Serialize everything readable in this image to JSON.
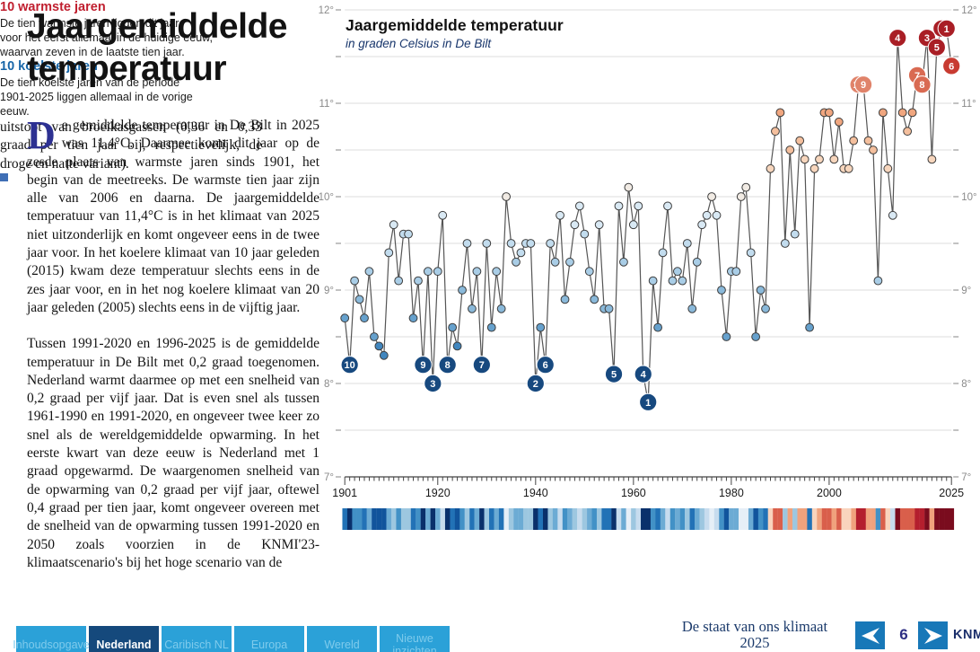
{
  "article": {
    "title": "Jaargemiddelde temperatuur",
    "dropcap": "D",
    "paragraph1": "e gemiddelde temperatuur in De Bilt in 2025 was 11,4°C. Daarmee komt dit jaar op de zesde plaats van warmste jaren sinds 1901, het begin van de meetreeks. De warmste tien jaar zijn alle van 2006 en daarna. De jaargemiddelde temperatuur van 11,4°C is in het klimaat van 2025 niet uitzonderlijk en komt ongeveer eens in de twee jaar voor. In het koelere klimaat van 10 jaar geleden (2015) kwam deze temperatuur slechts eens in de zes jaar voor, en in het nog koelere klimaat van 20 jaar geleden (2005) slechts eens in de vijftig jaar.",
    "paragraph2": "Tussen 1991-2020 en 1996-2025 is de gemiddelde temperatuur in De Bilt met 0,2 graad toegenomen. Nederland warmt daarmee op met een snelheid van 0,2 graad per vijf jaar. Dat is even snel als tussen 1961-1990 en 1991-2020, en ongeveer twee keer zo snel als de wereldgemiddelde opwarming. In het eerste kwart van deze eeuw is Nederland met 1 graad opgewarmd. De waargenomen snelheid van de opwarming van 0,2 graad per vijf jaar, oftewel 0,4 graad per tien jaar, komt ongeveer overeen met de snelheid van de opwarming tussen 1991-2020 en 2050 zoals voorzien in de KNMI'23-klimaatscenario's bij het hoge scenario van de",
    "continuation": "uitstoot van broeikasgassen (0,36 en 0,33 graad per tien jaar bij, respectievelijk, de droge en natte variant)."
  },
  "chart_data": {
    "type": "line",
    "title": "Jaargemiddelde temperatuur",
    "subtitle": "in graden Celsius in De Bilt",
    "ylabel": "graden Celsius",
    "ylim": [
      7,
      12
    ],
    "y_major_step": 1,
    "y_minor_step": 0.5,
    "y_label_suffix": "°",
    "x_tick_years": [
      1901,
      1920,
      1940,
      1960,
      1980,
      2000,
      2025
    ],
    "years_start": 1901,
    "years_end": 2025,
    "values": [
      8.7,
      8.2,
      9.1,
      8.9,
      8.7,
      9.2,
      8.5,
      8.4,
      8.3,
      9.4,
      9.7,
      9.1,
      9.6,
      9.6,
      8.7,
      9.1,
      8.2,
      9.2,
      8.0,
      9.2,
      9.8,
      8.2,
      8.6,
      8.4,
      9.0,
      9.5,
      8.8,
      9.2,
      8.2,
      9.5,
      8.6,
      9.2,
      8.8,
      10.0,
      9.5,
      9.3,
      9.4,
      9.5,
      9.5,
      8.0,
      8.6,
      8.2,
      9.5,
      9.3,
      9.8,
      8.9,
      9.3,
      9.7,
      9.9,
      9.6,
      9.2,
      8.9,
      9.7,
      8.8,
      8.8,
      8.1,
      9.9,
      9.3,
      10.1,
      9.7,
      9.9,
      8.1,
      7.8,
      9.1,
      8.6,
      9.4,
      9.9,
      9.1,
      9.2,
      9.1,
      9.5,
      8.8,
      9.3,
      9.7,
      9.8,
      10.0,
      9.8,
      9.0,
      8.5,
      9.2,
      9.2,
      10.0,
      10.1,
      9.4,
      8.5,
      9.0,
      8.8,
      10.3,
      10.7,
      10.9,
      9.5,
      10.5,
      9.6,
      10.6,
      10.4,
      8.6,
      10.3,
      10.4,
      10.9,
      10.9,
      10.4,
      10.8,
      10.3,
      10.3,
      10.6,
      11.2,
      11.2,
      10.6,
      10.5,
      9.1,
      10.9,
      10.3,
      9.8,
      11.7,
      10.9,
      10.7,
      10.9,
      11.3,
      11.2,
      11.7,
      10.4,
      11.6,
      11.8,
      11.8,
      11.4
    ],
    "warm_ranks": [
      [
        2024,
        1
      ],
      [
        2023,
        2
      ],
      [
        2020,
        3
      ],
      [
        2014,
        4
      ],
      [
        2022,
        5
      ],
      [
        2025,
        6
      ],
      [
        2018,
        7
      ],
      [
        2019,
        8
      ],
      [
        2007,
        9
      ],
      [
        2006,
        10
      ]
    ],
    "cold_ranks": [
      [
        1963,
        1
      ],
      [
        1940,
        2
      ],
      [
        1919,
        3
      ],
      [
        1962,
        4
      ],
      [
        1956,
        5
      ],
      [
        1942,
        6
      ],
      [
        1929,
        7
      ],
      [
        1922,
        8
      ],
      [
        1917,
        9
      ],
      [
        1902,
        10
      ]
    ],
    "warm_annotation": {
      "title": "10 warmste jaren",
      "text": "De tien warmste jaren liggen dit jaar\nvoor het eerst allemaal in de huidige eeuw,\nwaarvan zeven in de laatste tien jaar."
    },
    "cold_annotation": {
      "title": "10 koelste jaren",
      "text": "De tien koelste jaren van de periode\n1901-2025 liggen allemaal in de vorige eeuw."
    },
    "has_warming_stripes_bar": true,
    "colors": {
      "warm_title": "#c01f2f",
      "cold_title": "#1866a8",
      "cold_badge": "#17497f",
      "warm_badge_rank1to5": "#a91e25",
      "warm_badge_rank6": "#c83b31",
      "warm_badge_rank7to8": "#d96a52",
      "warm_badge_rank9to10": "#e0836a",
      "line": "#555555",
      "grid": "#dcdcdc",
      "axis": "#444444"
    }
  },
  "footer": {
    "tabs": [
      {
        "label": "Inhoudsopgave",
        "active": false
      },
      {
        "label": "Nederland",
        "active": true
      },
      {
        "label": "Caribisch NL",
        "active": false
      },
      {
        "label": "Europa",
        "active": false
      },
      {
        "label": "Wereld",
        "active": false
      },
      {
        "label": "Nieuwe inzichten",
        "active": false
      }
    ],
    "report_title": "De staat van ons klimaat\n2025",
    "page_number": "6",
    "logo": "KNMI",
    "colors": {
      "tab_bg": "#2ba1d8",
      "tab_text": "#7fcbec",
      "tab_active_bg": "#15497c",
      "tab_active_text": "#ffffff",
      "button_bg": "#1878b8",
      "navy": "#2d2e83"
    }
  }
}
